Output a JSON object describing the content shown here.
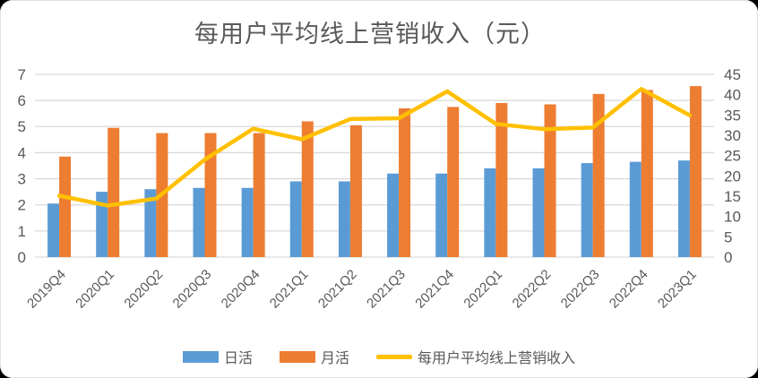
{
  "window": {
    "background_color": "#000000",
    "card_color": "#ffffff"
  },
  "chart_data": {
    "type": "combo-bar-line",
    "title": "每用户平均线上营销收入（元）",
    "categories": [
      "2019Q4",
      "2020Q1",
      "2020Q2",
      "2020Q3",
      "2020Q4",
      "2021Q1",
      "2021Q2",
      "2021Q3",
      "2021Q4",
      "2022Q1",
      "2022Q2",
      "2022Q3",
      "2022Q4",
      "2023Q1"
    ],
    "series": [
      {
        "name": "日活",
        "type": "bar",
        "axis": "left",
        "color": "#5B9BD5",
        "values": [
          2.05,
          2.5,
          2.6,
          2.65,
          2.65,
          2.9,
          2.9,
          3.2,
          3.2,
          3.4,
          3.4,
          3.6,
          3.65,
          3.7
        ]
      },
      {
        "name": "月活",
        "type": "bar",
        "axis": "left",
        "color": "#ED7D31",
        "values": [
          3.85,
          4.95,
          4.75,
          4.75,
          4.75,
          5.2,
          5.05,
          5.7,
          5.75,
          5.9,
          5.85,
          6.25,
          6.4,
          6.55
        ]
      },
      {
        "name": "每用户平均线上营销收入",
        "type": "line",
        "axis": "right",
        "color": "#FFC000",
        "values": [
          15.1,
          12.7,
          14.4,
          24.0,
          31.6,
          29.0,
          34.0,
          34.2,
          40.8,
          32.8,
          31.5,
          31.9,
          41.4,
          34.9
        ]
      }
    ],
    "left_axis": {
      "min": 0,
      "max": 7,
      "ticks": [
        0,
        1,
        2,
        3,
        4,
        5,
        6,
        7
      ]
    },
    "right_axis": {
      "min": 0,
      "max": 45,
      "ticks": [
        0,
        5,
        10,
        15,
        20,
        25,
        30,
        35,
        40,
        45
      ]
    },
    "grid": true,
    "grid_color": "#d9d9d9",
    "text_color": "#595959",
    "legend_position": "bottom"
  }
}
